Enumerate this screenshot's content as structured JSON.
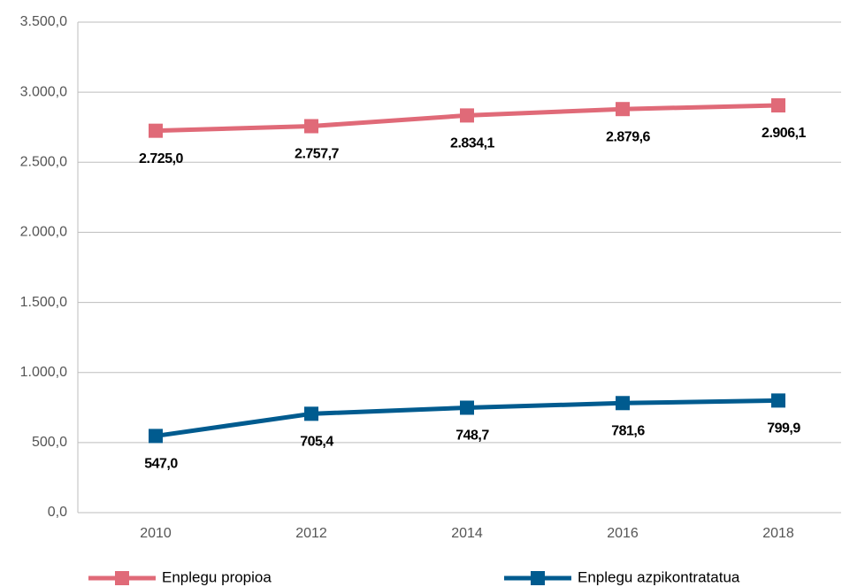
{
  "chart_data": {
    "type": "line",
    "categories": [
      "2010",
      "2012",
      "2014",
      "2016",
      "2018"
    ],
    "series": [
      {
        "name": "Enplegu propioa",
        "color": "#e06a78",
        "values": [
          2725.0,
          2757.7,
          2834.1,
          2879.6,
          2906.1
        ],
        "value_labels": [
          "2.725,0",
          "2.757,7",
          "2.834,1",
          "2.879,6",
          "2.906,1"
        ]
      },
      {
        "name": "Enplegu azpikontratatua",
        "color": "#005b8f",
        "values": [
          547.0,
          705.4,
          748.7,
          781.6,
          799.9
        ],
        "value_labels": [
          "547,0",
          "705,4",
          "748,7",
          "781,6",
          "799,9"
        ]
      }
    ],
    "ylim": [
      0,
      3500
    ],
    "yticks": [
      {
        "value": 0,
        "label": "0,0"
      },
      {
        "value": 500,
        "label": "500,0"
      },
      {
        "value": 1000,
        "label": "1.000,0"
      },
      {
        "value": 1500,
        "label": "1.500,0"
      },
      {
        "value": 2000,
        "label": "2.000,0"
      },
      {
        "value": 2500,
        "label": "2.500,0"
      },
      {
        "value": 3000,
        "label": "3.000,0"
      },
      {
        "value": 3500,
        "label": "3.500,0"
      }
    ],
    "grid": true,
    "legend": "bottom"
  }
}
